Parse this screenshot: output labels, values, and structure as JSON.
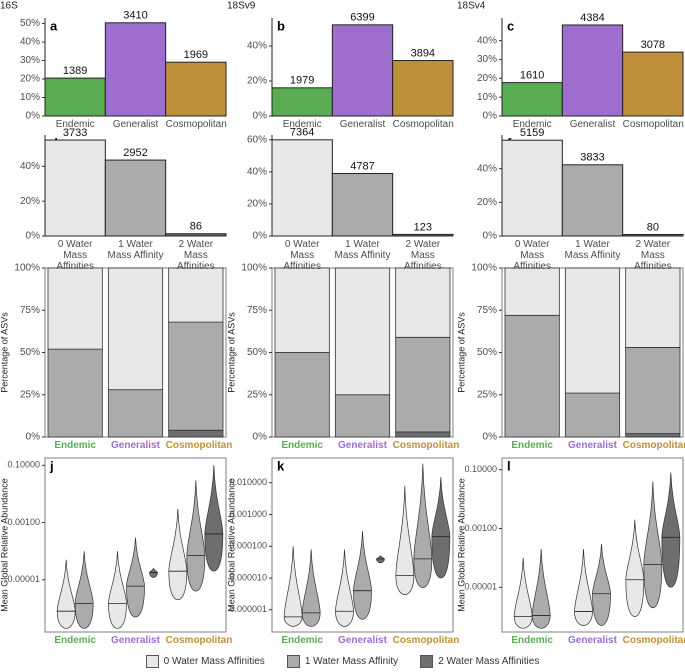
{
  "chart_data": [
    {
      "type": "bar",
      "label": "a",
      "title": "16S",
      "categories": [
        "Endemic",
        "Generalist",
        "Cosmopolitan"
      ],
      "colors": [
        "#5aac52",
        "#9e6ecf",
        "#bf903b"
      ],
      "values": [
        20.5,
        50.4,
        29.1
      ],
      "counts": [
        1389,
        3410,
        1969
      ],
      "ylim": [
        0,
        53
      ],
      "yticks": [
        {
          "value": 0,
          "label": "0%"
        },
        {
          "value": 10,
          "label": "10%"
        },
        {
          "value": 20,
          "label": "20%"
        },
        {
          "value": 30,
          "label": "30%"
        },
        {
          "value": 40,
          "label": "40%"
        },
        {
          "value": 50,
          "label": "50%"
        }
      ]
    },
    {
      "type": "bar",
      "label": "b",
      "title": "18Sv9",
      "categories": [
        "Endemic",
        "Generalist",
        "Cosmopolitan"
      ],
      "colors": [
        "#5aac52",
        "#9e6ecf",
        "#bf903b"
      ],
      "values": [
        16.1,
        52.1,
        31.7
      ],
      "counts": [
        1979,
        6399,
        3894
      ],
      "ylim": [
        0,
        56
      ],
      "yticks": [
        {
          "value": 0,
          "label": "0%"
        },
        {
          "value": 20,
          "label": "20%"
        },
        {
          "value": 40,
          "label": "40%"
        }
      ]
    },
    {
      "type": "bar",
      "label": "c",
      "title": "18Sv4",
      "categories": [
        "Endemic",
        "Generalist",
        "Cosmopolitan"
      ],
      "colors": [
        "#5aac52",
        "#9e6ecf",
        "#bf903b"
      ],
      "values": [
        17.7,
        48.3,
        33.9
      ],
      "counts": [
        1610,
        4384,
        3078
      ],
      "ylim": [
        0,
        52
      ],
      "yticks": [
        {
          "value": 0,
          "label": "0%"
        },
        {
          "value": 10,
          "label": "10%"
        },
        {
          "value": 20,
          "label": "20%"
        },
        {
          "value": 30,
          "label": "30%"
        },
        {
          "value": 40,
          "label": "40%"
        }
      ]
    },
    {
      "type": "bar",
      "label": "d",
      "categories": [
        "0 Water Mass Affinities",
        "1 Water Mass Affinity",
        "2 Water Mass Affinities"
      ],
      "colors": [
        "#e8e8e8",
        "#ababab",
        "#6e6e6e"
      ],
      "values": [
        55.1,
        43.6,
        1.3
      ],
      "counts": [
        3733,
        2952,
        86
      ],
      "ylim": [
        0,
        58
      ],
      "yticks": [
        {
          "value": 0,
          "label": "0%"
        },
        {
          "value": 20,
          "label": "20%"
        },
        {
          "value": 40,
          "label": "40%"
        }
      ]
    },
    {
      "type": "bar",
      "label": "e",
      "categories": [
        "0 Water Mass Affinities",
        "1 Water Mass Affinity",
        "2 Water Mass Affinities"
      ],
      "colors": [
        "#e8e8e8",
        "#ababab",
        "#6e6e6e"
      ],
      "values": [
        60.0,
        39.0,
        1.0
      ],
      "counts": [
        7364,
        4787,
        123
      ],
      "ylim": [
        0,
        63
      ],
      "yticks": [
        {
          "value": 0,
          "label": "0%"
        },
        {
          "value": 20,
          "label": "20%"
        },
        {
          "value": 40,
          "label": "40%"
        },
        {
          "value": 60,
          "label": "60%"
        }
      ]
    },
    {
      "type": "bar",
      "label": "f",
      "categories": [
        "0 Water Mass Affinities",
        "1 Water Mass Affinity",
        "2 Water Mass Affinities"
      ],
      "colors": [
        "#e8e8e8",
        "#ababab",
        "#6e6e6e"
      ],
      "values": [
        56.9,
        42.3,
        0.9
      ],
      "counts": [
        5159,
        3833,
        80
      ],
      "ylim": [
        0,
        60
      ],
      "yticks": [
        {
          "value": 0,
          "label": "0%"
        },
        {
          "value": 20,
          "label": "20%"
        },
        {
          "value": 40,
          "label": "40%"
        }
      ]
    },
    {
      "type": "stacked_bar",
      "label": "g",
      "ylabel": "Percentage of ASVs",
      "categories": [
        "Endemic",
        "Generalist",
        "Cosmopolitan"
      ],
      "category_colors": [
        "#5aac52",
        "#9e6ecf",
        "#bf903b"
      ],
      "series": [
        {
          "values": [
            48,
            72,
            32
          ]
        },
        {
          "values": [
            52,
            28,
            64
          ]
        },
        {
          "values": [
            0,
            0,
            4
          ]
        }
      ],
      "ylim": [
        0,
        100
      ],
      "yticks": [
        {
          "value": 0,
          "label": "0%"
        },
        {
          "value": 25,
          "label": "25%"
        },
        {
          "value": 50,
          "label": "50%"
        },
        {
          "value": 75,
          "label": "75%"
        },
        {
          "value": 100,
          "label": "100%"
        }
      ]
    },
    {
      "type": "stacked_bar",
      "label": "h",
      "ylabel": "Percentage of ASVs",
      "categories": [
        "Endemic",
        "Generalist",
        "Cosmopolitan"
      ],
      "category_colors": [
        "#5aac52",
        "#9e6ecf",
        "#bf903b"
      ],
      "series": [
        {
          "values": [
            50,
            75,
            41
          ]
        },
        {
          "values": [
            50,
            25,
            56
          ]
        },
        {
          "values": [
            0,
            0,
            3
          ]
        }
      ],
      "ylim": [
        0,
        100
      ],
      "yticks": [
        {
          "value": 0,
          "label": "0%"
        },
        {
          "value": 25,
          "label": "25%"
        },
        {
          "value": 50,
          "label": "50%"
        },
        {
          "value": 75,
          "label": "75%"
        },
        {
          "value": 100,
          "label": "100%"
        }
      ]
    },
    {
      "type": "stacked_bar",
      "label": "i",
      "ylabel": "Percentage of ASVs",
      "categories": [
        "Endemic",
        "Generalist",
        "Cosmopolitan"
      ],
      "category_colors": [
        "#5aac52",
        "#9e6ecf",
        "#bf903b"
      ],
      "series": [
        {
          "values": [
            28,
            74,
            47
          ]
        },
        {
          "values": [
            72,
            26,
            51
          ]
        },
        {
          "values": [
            0,
            0,
            2
          ]
        }
      ],
      "ylim": [
        0,
        100
      ],
      "yticks": [
        {
          "value": 0,
          "label": "0%"
        },
        {
          "value": 25,
          "label": "25%"
        },
        {
          "value": 50,
          "label": "50%"
        },
        {
          "value": 75,
          "label": "75%"
        },
        {
          "value": 100,
          "label": "100%"
        }
      ]
    },
    {
      "type": "violin",
      "label": "j",
      "ylabel": "Mean Global Relative Abundance",
      "log_scale": true,
      "categories": [
        "Endemic",
        "Generalist",
        "Cosmopolitan"
      ],
      "category_colors": [
        "#5aac52",
        "#9e6ecf",
        "#bf903b"
      ],
      "ylim": [
        1.5e-07,
        0.18
      ],
      "yticks": [
        {
          "value": 1e-05,
          "label": "0.00001"
        },
        {
          "value": 0.001,
          "label": "0.00100"
        },
        {
          "value": 0.1,
          "label": "0.10000"
        }
      ],
      "series": [
        {
          "min": [
            2e-07,
            2e-07,
            2e-06
          ],
          "median": [
            8e-07,
            1.5e-06,
            2e-05
          ],
          "max": [
            5e-05,
            0.0001,
            0.003
          ]
        },
        {
          "min": [
            2e-07,
            5e-07,
            4e-06
          ],
          "median": [
            1.5e-06,
            6e-06,
            7e-05
          ],
          "max": [
            0.0001,
            0.0003,
            0.03
          ]
        },
        {
          "min": [
            null,
            1.2e-05,
            2e-05
          ],
          "median": [
            null,
            1.8e-05,
            0.0004
          ],
          "max": [
            null,
            2.5e-05,
            0.1
          ]
        }
      ]
    },
    {
      "type": "violin",
      "label": "k",
      "ylabel": "Mean Global Relative Abundance",
      "log_scale": true,
      "categories": [
        "Endemic",
        "Generalist",
        "Cosmopolitan"
      ],
      "category_colors": [
        "#5aac52",
        "#9e6ecf",
        "#bf903b"
      ],
      "ylim": [
        2e-07,
        0.06
      ],
      "yticks": [
        {
          "value": 1e-06,
          "label": "0.000001"
        },
        {
          "value": 1e-05,
          "label": "0.000010"
        },
        {
          "value": 0.0001,
          "label": "0.000100"
        },
        {
          "value": 0.001,
          "label": "0.001000"
        },
        {
          "value": 0.01,
          "label": "0.010000"
        }
      ],
      "series": [
        {
          "min": [
            3e-07,
            3e-07,
            3e-06
          ],
          "median": [
            6e-07,
            9e-07,
            1.2e-05
          ],
          "max": [
            0.0001,
            8e-05,
            0.008
          ]
        },
        {
          "min": [
            3e-07,
            5e-07,
            5e-06
          ],
          "median": [
            8e-07,
            4e-06,
            4e-05
          ],
          "max": [
            8e-05,
            0.0003,
            0.04
          ]
        },
        {
          "min": [
            null,
            3e-05,
            1e-05
          ],
          "median": [
            null,
            4e-05,
            0.0002
          ],
          "max": [
            null,
            5e-05,
            0.015
          ]
        }
      ]
    },
    {
      "type": "violin",
      "label": "l",
      "ylabel": "Mean Global Relative Abundance",
      "log_scale": true,
      "categories": [
        "Endemic",
        "Generalist",
        "Cosmopolitan"
      ],
      "category_colors": [
        "#5aac52",
        "#9e6ecf",
        "#bf903b"
      ],
      "ylim": [
        3e-07,
        0.25
      ],
      "yticks": [
        {
          "value": 1e-05,
          "label": "0.00001"
        },
        {
          "value": 0.001,
          "label": "0.00100"
        },
        {
          "value": 0.1,
          "label": "0.10000"
        }
      ],
      "series": [
        {
          "min": [
            4e-07,
            5e-07,
            1e-06
          ],
          "median": [
            1e-06,
            1.5e-06,
            1.8e-05
          ],
          "max": [
            0.0001,
            0.0002,
            0.002
          ]
        },
        {
          "min": [
            4e-07,
            5e-07,
            2e-06
          ],
          "median": [
            1.1e-06,
            6e-06,
            6e-05
          ],
          "max": [
            0.0002,
            0.0003,
            0.04
          ]
        },
        {
          "min": [
            null,
            null,
            1e-05
          ],
          "median": [
            null,
            null,
            0.0005
          ],
          "max": [
            null,
            null,
            0.08
          ]
        }
      ]
    }
  ],
  "legend": [
    {
      "name": "0 Water Mass Affinities",
      "color": "#e8e8e8"
    },
    {
      "name": "1 Water Mass Affinity",
      "color": "#ababab"
    },
    {
      "name": "2 Water Mass Affinities",
      "color": "#6e6e6e"
    }
  ]
}
